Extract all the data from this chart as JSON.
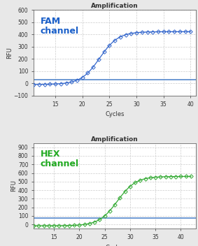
{
  "fam": {
    "title": "Amplification",
    "label": "FAM\nchannel",
    "label_color": "#1a5fc8",
    "line_color": "#3366cc",
    "marker_color": "#3366cc",
    "threshold": 30,
    "threshold_color": "#5588cc",
    "ylim": [
      -100,
      600
    ],
    "yticks": [
      -100,
      0,
      100,
      200,
      300,
      400,
      500,
      600
    ],
    "xlim": [
      11,
      41
    ],
    "xticks": [
      15,
      20,
      25,
      30,
      35,
      40
    ],
    "xlabel": "Cycles",
    "ylabel": "RFU",
    "sigmoid_L": 430,
    "sigmoid_k": 0.58,
    "sigmoid_x0": 23.2,
    "x_start": 11,
    "x_end": 40,
    "baseline": -8
  },
  "hex": {
    "title": "Amplification",
    "label": "HEX\nchannel",
    "label_color": "#22aa22",
    "line_color": "#33aa33",
    "marker_color": "#33aa33",
    "threshold": 75,
    "threshold_color": "#5588cc",
    "ylim": [
      -50,
      950
    ],
    "yticks": [
      0,
      100,
      200,
      300,
      400,
      500,
      600,
      700,
      800,
      900
    ],
    "xlim": [
      11,
      43
    ],
    "xticks": [
      15,
      20,
      25,
      30,
      35,
      40
    ],
    "xlabel": "Cycles",
    "ylabel": "RFU",
    "sigmoid_L": 575,
    "sigmoid_k": 0.55,
    "sigmoid_x0": 27.5,
    "x_start": 11,
    "x_end": 42,
    "baseline": -15
  },
  "bg_color": "#ffffff",
  "fig_bg": "#e8e8e8",
  "grid_color": "#cccccc",
  "grid_style": "--"
}
